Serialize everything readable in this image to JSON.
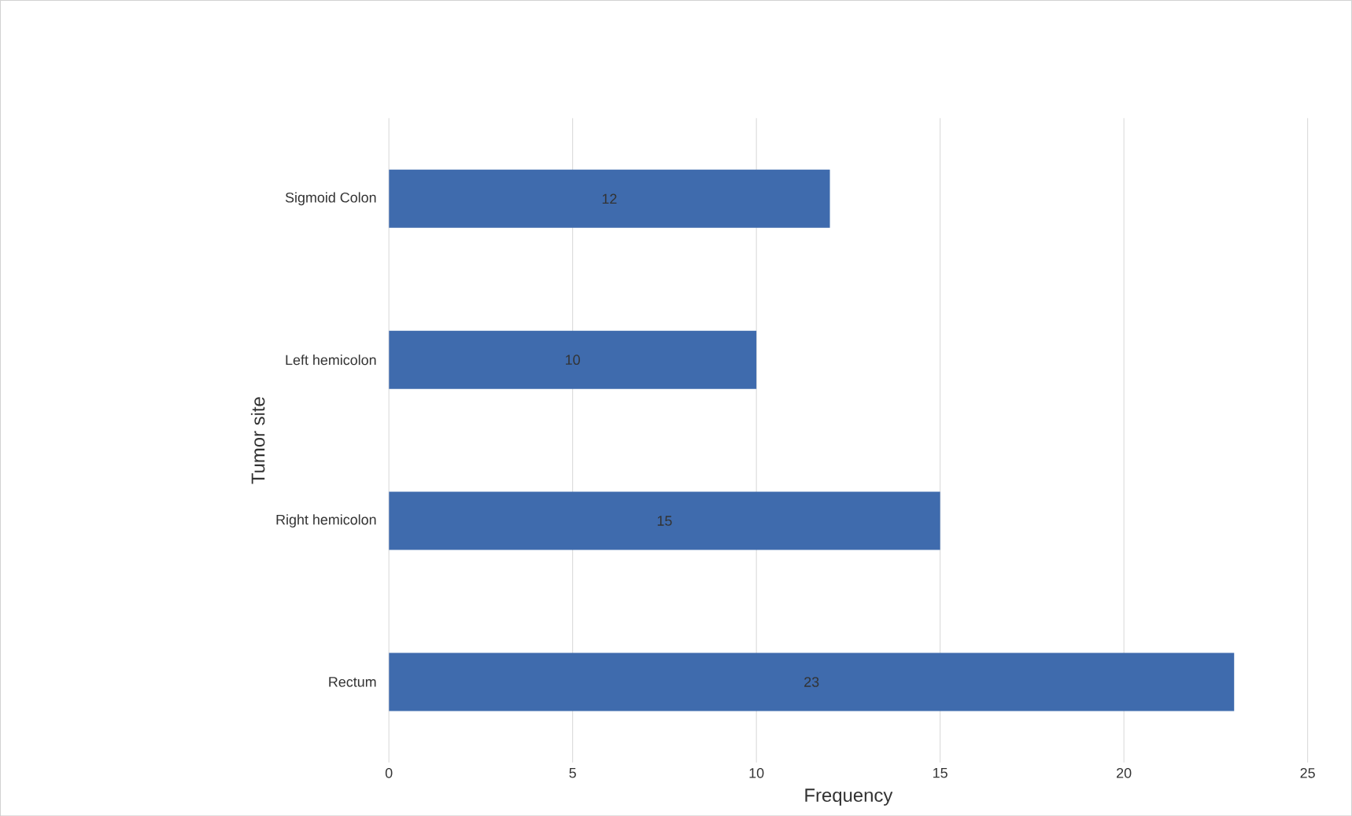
{
  "chart_data": {
    "type": "bar",
    "orientation": "horizontal",
    "xlabel": "Frequency",
    "ylabel": "Tumor site",
    "categories": [
      "Sigmoid Colon",
      "Left hemicolon",
      "Right hemicolon",
      "Rectum"
    ],
    "values": [
      12,
      10,
      15,
      23
    ],
    "color": "#3f6bad",
    "xlim": [
      0,
      25
    ],
    "xticks": [
      0,
      5,
      10,
      15,
      20,
      25
    ],
    "grid": "x",
    "data_labels": true
  }
}
